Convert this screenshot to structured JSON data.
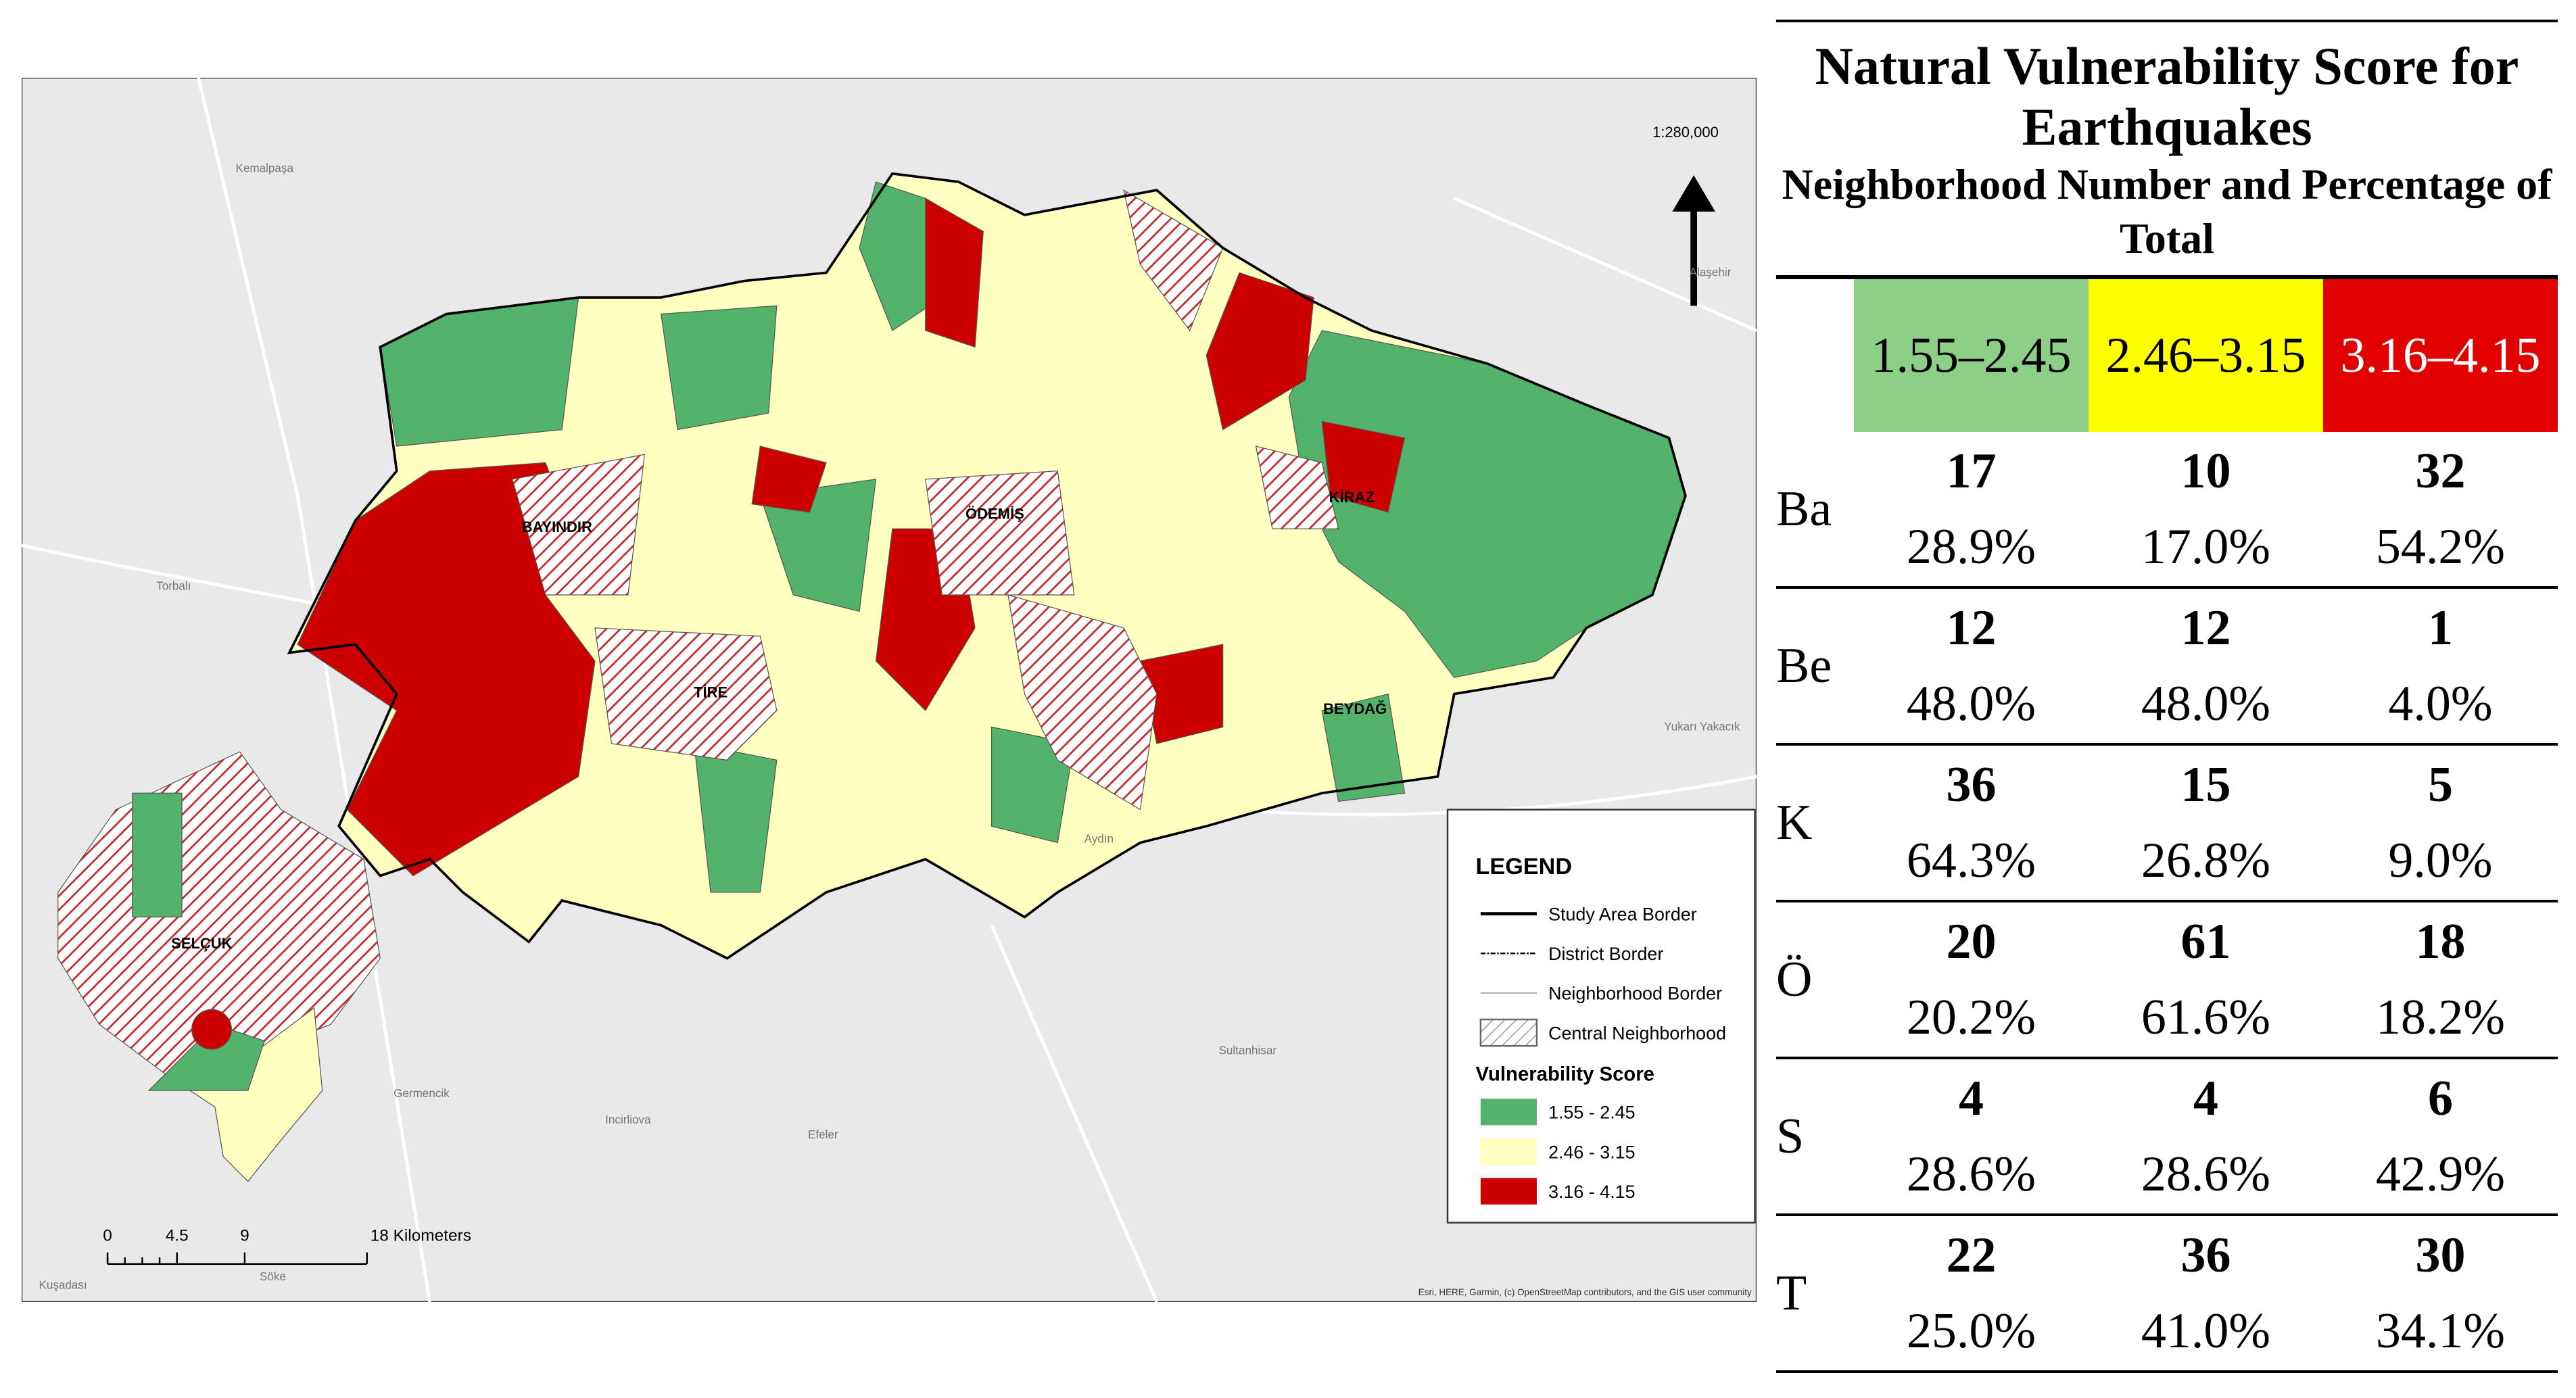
{
  "map": {
    "scale": "1:280,000",
    "districts": [
      "BAYINDIR",
      "ÖDEMİŞ",
      "KİRAZ",
      "TİRE",
      "BEYDAĞ",
      "SELÇUK"
    ],
    "places": [
      "Kemalpaşa",
      "Torbalı",
      "Germencik",
      "Incirliova",
      "Efeler",
      "Söke",
      "Kuşadası",
      "Sultanhisar",
      "Aydın",
      "Alaşehir",
      "Yukarı Yakacık"
    ],
    "legend": {
      "title": "LEGEND",
      "items": [
        "Study Area Border",
        "District Border",
        "Neighborhood Border",
        "Central Neighborhood"
      ],
      "score_title": "Vulnerability Score",
      "classes": [
        "1.55 - 2.45",
        "2.46 - 3.15",
        "3.16 - 4.15"
      ]
    },
    "scale_bar": [
      "0",
      "4.5",
      "9",
      "18 Kilometers"
    ],
    "attribution": "Esri, HERE, Garmin, (c) OpenStreetMap contributors, and the GIS user community"
  },
  "table": {
    "title": "Natural Vulnerability Score for Earthquakes",
    "subtitle": "Neighborhood Number and Percentage of Total",
    "columns": [
      "1.55–2.45",
      "2.46–3.15",
      "3.16–4.15"
    ],
    "rows": [
      {
        "label": "Ba",
        "counts": [
          17,
          10,
          32
        ],
        "percents": [
          "28.9%",
          "17.0%",
          "54.2%"
        ]
      },
      {
        "label": "Be",
        "counts": [
          12,
          12,
          1
        ],
        "percents": [
          "48.0%",
          "48.0%",
          "4.0%"
        ]
      },
      {
        "label": "K",
        "counts": [
          36,
          15,
          5
        ],
        "percents": [
          "64.3%",
          "26.8%",
          "9.0%"
        ]
      },
      {
        "label": "Ö",
        "counts": [
          20,
          61,
          18
        ],
        "percents": [
          "20.2%",
          "61.6%",
          "18.2%"
        ]
      },
      {
        "label": "S",
        "counts": [
          4,
          4,
          6
        ],
        "percents": [
          "28.6%",
          "28.6%",
          "42.9%"
        ]
      },
      {
        "label": "T",
        "counts": [
          22,
          36,
          30
        ],
        "percents": [
          "25.0%",
          "41.0%",
          "34.1%"
        ]
      }
    ]
  }
}
